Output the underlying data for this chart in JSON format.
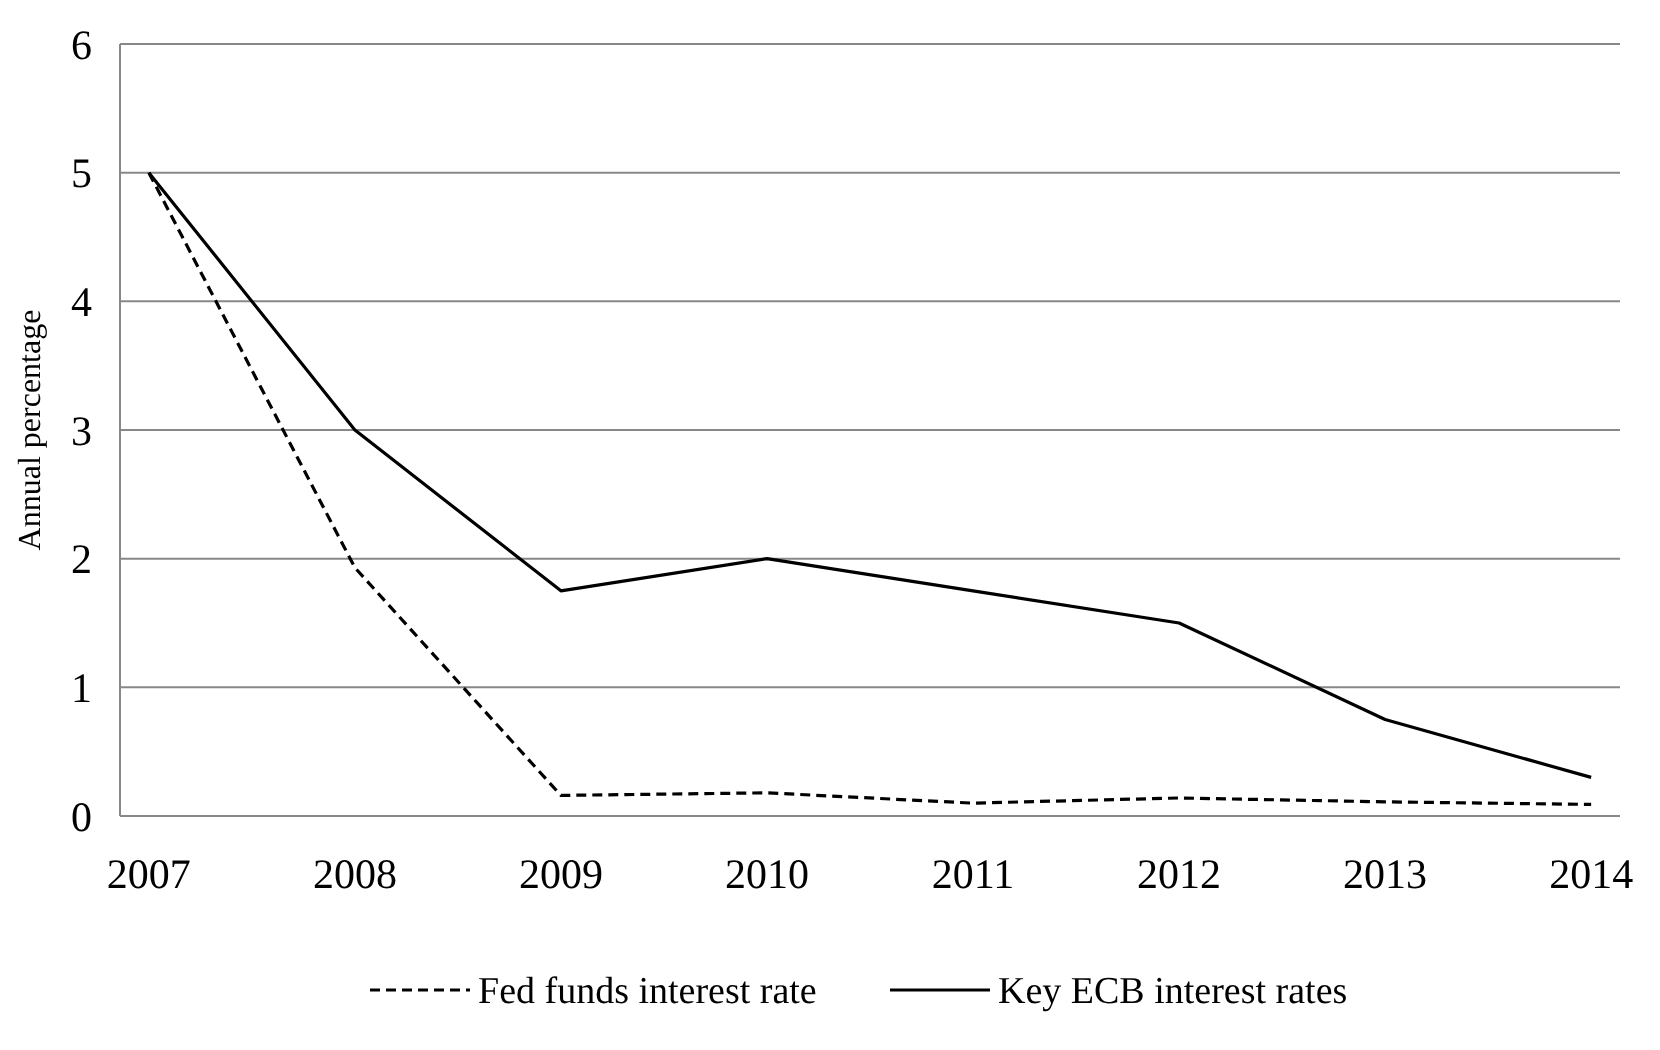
{
  "chart_data": {
    "type": "line",
    "ylabel": "Annual percentage",
    "categories": [
      "2007",
      "2008",
      "2009",
      "2010",
      "2011",
      "2012",
      "2013",
      "2014"
    ],
    "series": [
      {
        "name": "Fed funds interest rate",
        "color": "#000000",
        "line_style": "dashed",
        "values": [
          5.0,
          1.93,
          0.16,
          0.18,
          0.1,
          0.14,
          0.11,
          0.09
        ]
      },
      {
        "name": "Key ECB interest rates",
        "color": "#000000",
        "line_style": "solid",
        "values": [
          5.0,
          3.0,
          1.75,
          2.0,
          1.75,
          1.5,
          0.75,
          0.3
        ]
      }
    ],
    "ylim": [
      0,
      6
    ],
    "yticks": [
      0,
      1,
      2,
      3,
      4,
      5,
      6
    ],
    "grid": "y",
    "legend": "bottom",
    "marker": "none"
  }
}
